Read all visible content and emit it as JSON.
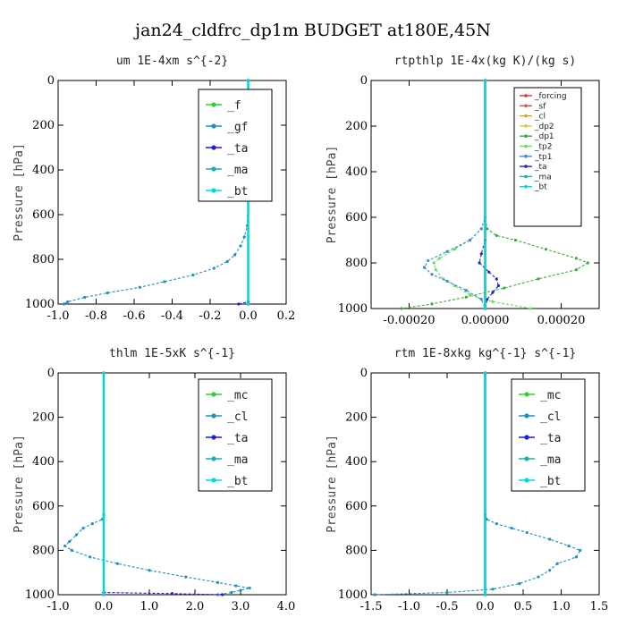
{
  "figure": {
    "title": "jan24_cldfrc_dp1m  BUDGET at180E,45N"
  },
  "chart_data": [
    {
      "type": "line",
      "title": "um  1E-4xm s^{-2}",
      "ylabel": "Pressure [hPa]",
      "xlim": [
        -1.0,
        0.2
      ],
      "ylim": [
        1000,
        0
      ],
      "xticks": [
        "-1.0",
        "-0.8",
        "-0.6",
        "-0.4",
        "-0.2",
        "0.0",
        "0.2"
      ],
      "yticks": [
        "0",
        "200",
        "400",
        "600",
        "800",
        "1000"
      ],
      "legend": "top-right",
      "series": [
        {
          "name": "_f",
          "color": "#33cc33",
          "y": [
            0,
            1000
          ],
          "x": [
            0,
            0
          ]
        },
        {
          "name": "_gf",
          "color": "#1f8fbf",
          "y": [
            0,
            500,
            650,
            700,
            740,
            780,
            810,
            840,
            870,
            900,
            925,
            950,
            970,
            990,
            1000
          ],
          "x": [
            0,
            0,
            -0.005,
            -0.02,
            -0.04,
            -0.07,
            -0.11,
            -0.18,
            -0.29,
            -0.44,
            -0.57,
            -0.74,
            -0.86,
            -0.95,
            -0.97
          ]
        },
        {
          "name": "_ta",
          "color": "#1a1ae6",
          "y": [
            0,
            990,
            1000
          ],
          "x": [
            0,
            0,
            -0.05
          ]
        },
        {
          "name": "_ma",
          "color": "#1ab0b0",
          "y": [
            0,
            1000
          ],
          "x": [
            0,
            0
          ]
        },
        {
          "name": "_bt",
          "color": "#00d8d8",
          "y": [
            0,
            1000
          ],
          "x": [
            0,
            0
          ]
        }
      ]
    },
    {
      "type": "line",
      "title": "rtpthlp  1E-4x(kg K)/(kg s)",
      "ylabel": "Pressure [hPa]",
      "xlim": [
        -0.0003,
        0.0003
      ],
      "ylim": [
        1000,
        0
      ],
      "xticks": [
        "-0.00020",
        "0.00000",
        "0.00020"
      ],
      "yticks": [
        "0",
        "200",
        "400",
        "600",
        "800",
        "1000"
      ],
      "legend": "top-right",
      "series": [
        {
          "name": "_forcing",
          "color": "#e03030",
          "y": [
            0,
            1000
          ],
          "x": [
            0,
            0
          ]
        },
        {
          "name": "_sf",
          "color": "#e05050",
          "y": [
            0,
            1000
          ],
          "x": [
            0,
            0
          ]
        },
        {
          "name": "_cl",
          "color": "#e0a030",
          "y": [
            0,
            1000
          ],
          "x": [
            0,
            0
          ]
        },
        {
          "name": "_dp2",
          "color": "#e0c040",
          "y": [
            0,
            1000
          ],
          "x": [
            0,
            0
          ]
        },
        {
          "name": "_dp1",
          "color": "#33b033",
          "y": [
            0,
            600,
            650,
            680,
            700,
            740,
            780,
            800,
            830,
            870,
            910,
            950,
            980,
            1000
          ],
          "x": [
            0,
            0,
            5e-06,
            3e-05,
            8e-05,
            0.00016,
            0.00024,
            0.00027,
            0.00024,
            0.00014,
            5e-05,
            -5e-05,
            -0.00014,
            -0.00022
          ]
        },
        {
          "name": "_tp2",
          "color": "#66dd66",
          "y": [
            0,
            600,
            650,
            700,
            740,
            780,
            800,
            830,
            870,
            900,
            940,
            970,
            1000
          ],
          "x": [
            0,
            0,
            -1e-05,
            -4e-05,
            -8e-05,
            -0.00012,
            -0.000135,
            -0.00013,
            -0.00011,
            -8e-05,
            -4e-05,
            2e-05,
            0.00012
          ]
        },
        {
          "name": "_tp1",
          "color": "#3a8ad8",
          "y": [
            0,
            600,
            650,
            700,
            750,
            790,
            820,
            850,
            880,
            920,
            960,
            1000
          ],
          "x": [
            0,
            0,
            -1e-05,
            -4e-05,
            -0.0001,
            -0.00015,
            -0.00016,
            -0.00014,
            -0.0001,
            -5e-05,
            -1e-05,
            0
          ]
        },
        {
          "name": "_ta",
          "color": "#2020d8",
          "y": [
            0,
            700,
            760,
            800,
            840,
            870,
            900,
            930,
            960,
            1000
          ],
          "x": [
            0,
            0,
            -1e-05,
            -1.5e-05,
            1e-05,
            3e-05,
            3.5e-05,
            2e-05,
            5e-06,
            0
          ]
        },
        {
          "name": "_ma",
          "color": "#20b0b0",
          "y": [
            0,
            1000
          ],
          "x": [
            0,
            0
          ]
        },
        {
          "name": "_bt",
          "color": "#00d8d8",
          "y": [
            0,
            1000
          ],
          "x": [
            0,
            0
          ]
        }
      ]
    },
    {
      "type": "line",
      "title": "thlm  1E-5xK s^{-1}",
      "ylabel": "Pressure [hPa]",
      "xlim": [
        -1.0,
        4.0
      ],
      "ylim": [
        1000,
        0
      ],
      "xticks": [
        "-1.0",
        "0.0",
        "1.0",
        "2.0",
        "3.0",
        "4.0"
      ],
      "yticks": [
        "0",
        "200",
        "400",
        "600",
        "800",
        "1000"
      ],
      "legend": "top-right",
      "series": [
        {
          "name": "_mc",
          "color": "#33cc33",
          "y": [
            0,
            1000
          ],
          "x": [
            0,
            0
          ]
        },
        {
          "name": "_cl",
          "color": "#1f8fbf",
          "y": [
            0,
            640,
            660,
            680,
            700,
            730,
            760,
            780,
            800,
            830,
            860,
            890,
            920,
            945,
            960,
            970,
            980,
            990,
            1000
          ],
          "x": [
            0,
            0,
            -0.03,
            -0.25,
            -0.45,
            -0.6,
            -0.75,
            -0.85,
            -0.7,
            -0.3,
            0.3,
            1.0,
            1.8,
            2.5,
            2.9,
            3.2,
            3.0,
            2.8,
            2.5
          ]
        },
        {
          "name": "_ta",
          "color": "#1a1ae6",
          "y": [
            0,
            990,
            995,
            1000
          ],
          "x": [
            0,
            0,
            1.5,
            2.6
          ]
        },
        {
          "name": "_ma",
          "color": "#1ab0b0",
          "y": [
            0,
            1000
          ],
          "x": [
            0,
            0
          ]
        },
        {
          "name": "_bt",
          "color": "#00d8d8",
          "y": [
            0,
            1000
          ],
          "x": [
            0,
            0
          ]
        }
      ]
    },
    {
      "type": "line",
      "title": "rtm  1E-8xkg kg^{-1} s^{-1}",
      "ylabel": "Pressure [hPa]",
      "xlim": [
        -1.5,
        1.5
      ],
      "ylim": [
        1000,
        0
      ],
      "xticks": [
        "-1.5",
        "-1.0",
        "-0.5",
        "0.0",
        "0.5",
        "1.0",
        "1.5"
      ],
      "yticks": [
        "0",
        "200",
        "400",
        "600",
        "800",
        "1000"
      ],
      "legend": "top-right",
      "series": [
        {
          "name": "_mc",
          "color": "#33cc33",
          "y": [
            0,
            1000
          ],
          "x": [
            0,
            0
          ]
        },
        {
          "name": "_cl",
          "color": "#1f8fbf",
          "y": [
            0,
            640,
            660,
            680,
            700,
            720,
            750,
            780,
            800,
            830,
            860,
            890,
            920,
            950,
            975,
            990,
            1000
          ],
          "x": [
            0,
            0,
            0.02,
            0.15,
            0.35,
            0.55,
            0.85,
            1.1,
            1.25,
            1.2,
            0.95,
            0.85,
            0.7,
            0.45,
            0.1,
            -0.5,
            -1.45
          ]
        },
        {
          "name": "_ta",
          "color": "#1a1ae6",
          "y": [
            0,
            1000
          ],
          "x": [
            0,
            0
          ]
        },
        {
          "name": "_ma",
          "color": "#1ab0b0",
          "y": [
            0,
            1000
          ],
          "x": [
            0,
            0
          ]
        },
        {
          "name": "_bt",
          "color": "#00d8d8",
          "y": [
            0,
            1000
          ],
          "x": [
            0,
            0
          ]
        }
      ]
    }
  ]
}
